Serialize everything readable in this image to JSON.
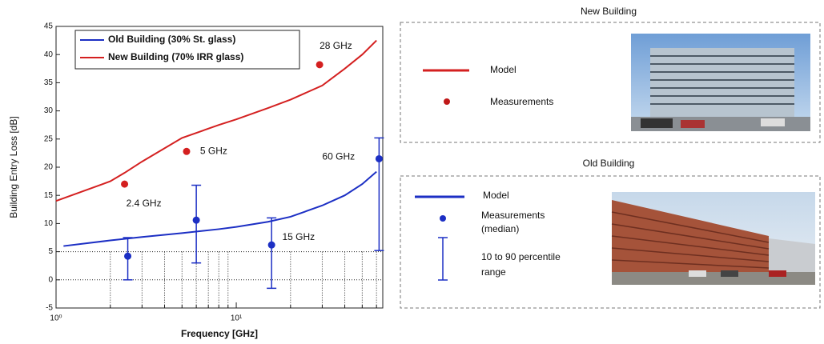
{
  "chart_data": {
    "type": "line",
    "x_label": "Frequency [GHz]",
    "y_label": "Building Entry Loss [dB]",
    "log_x": true,
    "xlim": [
      1,
      65
    ],
    "ylim": [
      -5,
      45
    ],
    "xticks": [
      {
        "value": 1,
        "label": "10⁰"
      },
      {
        "value": 10,
        "label": "10¹"
      }
    ],
    "xticks_minor": [
      2,
      3,
      4,
      5,
      6,
      7,
      8,
      9,
      20,
      30,
      40,
      50,
      60
    ],
    "yticks": [
      -5,
      0,
      5,
      10,
      15,
      20,
      25,
      30,
      35,
      40,
      45
    ],
    "dotted_grid_y": [
      0,
      5
    ],
    "series": [
      {
        "name": "Old Building (30% St. glass)",
        "color": "#1c2fc4",
        "x": [
          1.1,
          2,
          3,
          5,
          8,
          10,
          15,
          20,
          30,
          40,
          50,
          60
        ],
        "values": [
          6.0,
          7.0,
          7.6,
          8.3,
          9.0,
          9.4,
          10.3,
          11.2,
          13.2,
          15,
          17,
          19.2
        ]
      },
      {
        "name": "New Building (70% IRR glass)",
        "color": "#d42020",
        "x": [
          1,
          2,
          2.4,
          3,
          5,
          8,
          10,
          15,
          20,
          30,
          40,
          50,
          60
        ],
        "values": [
          14,
          17.5,
          19,
          21,
          25.2,
          27.5,
          28.5,
          30.5,
          32,
          34.5,
          37.5,
          40,
          42.5
        ]
      }
    ],
    "measurements": [
      {
        "color": "#d42020",
        "x": [
          2.4,
          5.3,
          29
        ],
        "values": [
          17,
          22.8,
          38.2
        ]
      },
      {
        "color": "#1c2fc4",
        "x": [
          2.5,
          6,
          15.7,
          62
        ],
        "values": [
          4.2,
          10.6,
          6.2,
          21.5
        ],
        "low": [
          0,
          3,
          -1.5,
          5.2
        ],
        "high": [
          7.5,
          16.8,
          11,
          25.2
        ]
      }
    ],
    "annotations": [
      {
        "text": "28 GHz",
        "x": 29,
        "y": 41.5
      },
      {
        "text": "5 GHz",
        "x": 6.3,
        "y": 22.8
      },
      {
        "text": "2.4 GHz",
        "x": 2.45,
        "y": 13.5
      },
      {
        "text": "60 GHz",
        "x": 30,
        "y": 21.8
      },
      {
        "text": "15 GHz",
        "x": 18,
        "y": 7.5
      }
    ]
  },
  "legend_panels": [
    {
      "title": "New Building",
      "model": "Model",
      "measurements": [
        "Measurements"
      ]
    },
    {
      "title": "Old Building",
      "model": "Model",
      "measurements": [
        "Measurements",
        "(median)"
      ],
      "range": [
        "10 to 90 percentile",
        "range"
      ]
    }
  ]
}
